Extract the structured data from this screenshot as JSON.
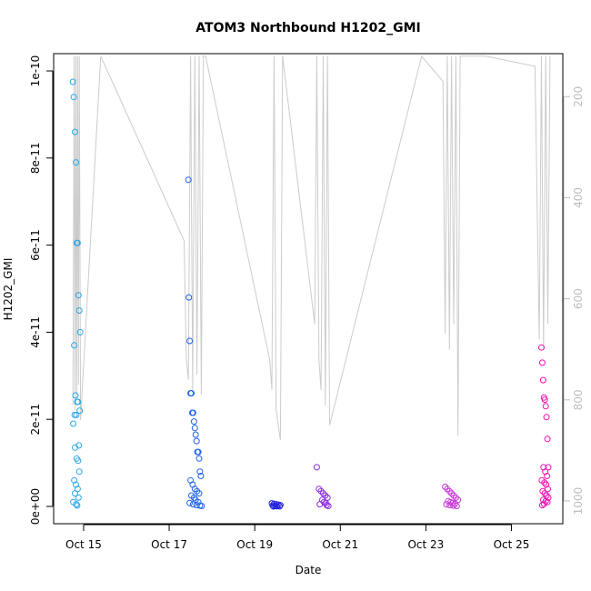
{
  "chart_data": {
    "type": "scatter",
    "title": "ATOM3 Northbound H1202_GMI",
    "xlabel": "Date",
    "ylabel": "H1202_GMI",
    "x_ticks": [
      "Oct 15",
      "Oct 17",
      "Oct 19",
      "Oct 21",
      "Oct 23",
      "Oct 25"
    ],
    "y_ticks": [
      "0e+00",
      "2e-11",
      "4e-11",
      "6e-11",
      "8e-11",
      "1e-10"
    ],
    "y_tick_values": [
      0,
      2e-11,
      4e-11,
      6e-11,
      8e-11,
      1e-10
    ],
    "ylim": [
      0,
      1e-10
    ],
    "xlim_days_in_october": [
      14.3,
      26.2
    ],
    "right_axis_ticks": [
      "200",
      "400",
      "600",
      "800",
      "1000"
    ],
    "right_axis_values": [
      200,
      400,
      600,
      800,
      1000
    ],
    "right_axis_range": [
      115,
      1045
    ],
    "line_color": "#cccccc",
    "series": [
      {
        "flight": 1,
        "color": "#2aa7e8",
        "x": [
          14.75,
          14.77,
          14.8,
          14.82,
          14.84,
          14.86,
          14.88,
          14.9,
          14.92,
          14.78,
          14.81,
          14.85,
          14.87,
          14.91,
          14.83,
          14.79,
          14.76,
          14.89,
          14.8,
          14.84,
          14.87,
          14.9,
          14.78,
          14.82,
          14.86,
          14.8,
          14.88,
          14.76,
          14.83,
          14.85
        ],
        "y": [
          9.75e-11,
          9.4e-11,
          8.6e-11,
          7.9e-11,
          6.05e-11,
          6.05e-11,
          4.85e-11,
          4.5e-11,
          4e-11,
          3.7e-11,
          2.55e-11,
          2.4e-11,
          2.4e-11,
          2.2e-11,
          2.1e-11,
          2.1e-11,
          1.9e-11,
          1.4e-11,
          1.35e-11,
          1.1e-11,
          1.05e-11,
          8e-12,
          6e-12,
          5e-12,
          4e-12,
          3e-12,
          2e-12,
          1e-12,
          5e-13,
          2e-13
        ]
      },
      {
        "flight": 2,
        "color": "#1e63e8",
        "x": [
          17.45,
          17.46,
          17.48,
          17.5,
          17.52,
          17.54,
          17.56,
          17.58,
          17.6,
          17.62,
          17.64,
          17.66,
          17.68,
          17.7,
          17.72,
          17.74,
          17.5,
          17.55,
          17.6,
          17.65,
          17.7,
          17.52,
          17.58,
          17.62,
          17.68,
          17.48,
          17.56,
          17.64,
          17.72,
          17.76
        ],
        "y": [
          7.5e-11,
          4.8e-11,
          3.8e-11,
          2.6e-11,
          2.6e-11,
          2.15e-11,
          2.15e-11,
          1.95e-11,
          1.8e-11,
          1.65e-11,
          1.5e-11,
          1.25e-11,
          1.25e-11,
          1.1e-11,
          8e-12,
          7e-12,
          6e-12,
          5e-12,
          4e-12,
          3.5e-12,
          3e-12,
          2.5e-12,
          2e-12,
          1.5e-12,
          1e-12,
          8e-13,
          5e-13,
          3e-13,
          2e-13,
          1e-13
        ]
      },
      {
        "flight": 3,
        "color": "#2222dd",
        "x": [
          19.4,
          19.45,
          19.5,
          19.55,
          19.6,
          19.42,
          19.48,
          19.52,
          19.58,
          19.44
        ],
        "y": [
          7e-13,
          6e-13,
          5e-13,
          4e-13,
          3e-13,
          2e-13,
          1e-13,
          5e-14,
          3e-14,
          1e-14
        ]
      },
      {
        "flight": 4,
        "color": "#8a2be2",
        "x": [
          20.45,
          20.5,
          20.55,
          20.6,
          20.65,
          20.7,
          20.58,
          20.62,
          20.66,
          20.52,
          20.68,
          20.72
        ],
        "y": [
          9e-12,
          4e-12,
          3.5e-12,
          3e-12,
          2.5e-12,
          2e-12,
          1.5e-12,
          1e-12,
          8e-13,
          5e-13,
          3e-13,
          1e-13
        ]
      },
      {
        "flight": 5,
        "color": "#c836d8",
        "x": [
          23.45,
          23.5,
          23.55,
          23.6,
          23.65,
          23.7,
          23.75,
          23.52,
          23.58,
          23.62,
          23.68,
          23.48,
          23.56,
          23.64,
          23.72
        ],
        "y": [
          4.5e-12,
          4e-12,
          3.5e-12,
          3e-12,
          2.5e-12,
          2e-12,
          1.5e-12,
          1.2e-12,
          1e-12,
          8e-13,
          6e-13,
          5e-13,
          3e-13,
          2e-13,
          1e-13
        ]
      },
      {
        "flight": 6,
        "color": "#ee10b0",
        "x": [
          25.7,
          25.72,
          25.74,
          25.76,
          25.78,
          25.8,
          25.82,
          25.84,
          25.86,
          25.75,
          25.79,
          25.83,
          25.71,
          25.77,
          25.81,
          25.85,
          25.73,
          25.78,
          25.82,
          25.86,
          25.74,
          25.8,
          25.84,
          25.76,
          25.72
        ],
        "y": [
          3.65e-11,
          3.3e-11,
          2.9e-11,
          2.5e-11,
          2.45e-11,
          2.3e-11,
          2.05e-11,
          1.55e-11,
          9e-12,
          9e-12,
          8e-12,
          7e-12,
          6e-12,
          5.5e-12,
          5e-12,
          4e-12,
          3.5e-12,
          3e-12,
          2.5e-12,
          2e-12,
          1.5e-12,
          1.2e-12,
          1e-12,
          6e-13,
          3e-13
        ]
      }
    ],
    "altitude_line": {
      "x": [
        14.75,
        14.78,
        14.8,
        14.82,
        14.84,
        14.86,
        14.88,
        14.9,
        14.93,
        15.4,
        17.35,
        17.4,
        17.45,
        17.5,
        17.55,
        17.6,
        17.65,
        17.7,
        17.75,
        17.8,
        17.85,
        19.35,
        19.4,
        19.45,
        19.5,
        19.6,
        19.65,
        20.4,
        20.45,
        20.5,
        20.55,
        20.6,
        20.65,
        20.7,
        20.75,
        22.9,
        23.4,
        23.45,
        23.5,
        23.55,
        23.6,
        23.65,
        23.7,
        23.75,
        23.8,
        24.4,
        25.55,
        25.65,
        25.7,
        25.75,
        25.8,
        25.85,
        25.9
      ],
      "y": [
        810,
        120,
        820,
        120,
        800,
        120,
        770,
        120,
        840,
        120,
        485,
        720,
        760,
        120,
        780,
        120,
        750,
        120,
        790,
        120,
        120,
        720,
        780,
        120,
        820,
        880,
        120,
        650,
        120,
        720,
        780,
        120,
        810,
        120,
        850,
        120,
        170,
        670,
        120,
        700,
        120,
        650,
        120,
        870,
        120,
        120,
        140,
        680,
        120,
        700,
        120,
        650,
        120
      ]
    }
  }
}
